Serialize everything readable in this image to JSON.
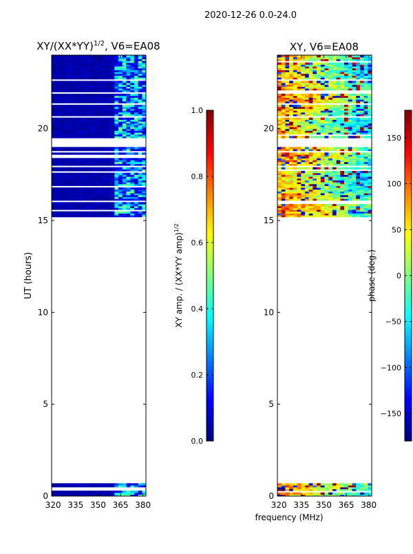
{
  "figure": {
    "suptitle": "2020-12-26 0.0-24.0",
    "xlabel": "frequency (MHz)"
  },
  "colors": {
    "jet_stops": [
      "#00007f",
      "#0000ff",
      "#0080ff",
      "#00ffff",
      "#80ff80",
      "#ffff00",
      "#ff8000",
      "#ff0000",
      "#7f0000"
    ]
  },
  "chart_data": [
    {
      "type": "heatmap",
      "title_main": "XY/(XX*YY)",
      "title_exp": "1/2",
      "title_suffix": ", V6=EA08",
      "xlabel": "",
      "ylabel": "UT (hours)",
      "xlim": [
        319,
        382
      ],
      "ylim": [
        0,
        24
      ],
      "xticks": [
        320,
        335,
        350,
        365,
        380
      ],
      "yticks": [
        0,
        5,
        10,
        15,
        20
      ],
      "data_bands_hours": [
        [
          0,
          0.7
        ],
        [
          15.2,
          24
        ]
      ],
      "colorbar": {
        "label_main": "XY amp. / (XX*YY amp)",
        "label_exp": "1/2",
        "range": [
          0.0,
          1.0
        ],
        "ticks": [
          "0.0",
          "0.2",
          "0.4",
          "0.6",
          "0.8",
          "1.0"
        ],
        "tick_values": [
          0.0,
          0.2,
          0.4,
          0.6,
          0.8,
          1.0
        ]
      }
    },
    {
      "type": "heatmap",
      "title_main": "XY, V6=EA08",
      "xlabel": "frequency (MHz)",
      "ylabel": "",
      "xlim": [
        319,
        382
      ],
      "ylim": [
        0,
        24
      ],
      "xticks": [
        320,
        335,
        350,
        365,
        380
      ],
      "yticks": [
        0,
        5,
        10,
        15,
        20
      ],
      "data_bands_hours": [
        [
          0,
          0.7
        ],
        [
          15.2,
          24
        ]
      ],
      "colorbar": {
        "label_main": "phase (deg.)",
        "range": [
          -180,
          180
        ],
        "ticks": [
          "−150",
          "−100",
          "−50",
          "0",
          "50",
          "100",
          "150"
        ],
        "tick_values": [
          -150,
          -100,
          -50,
          0,
          50,
          100,
          150
        ]
      }
    }
  ]
}
